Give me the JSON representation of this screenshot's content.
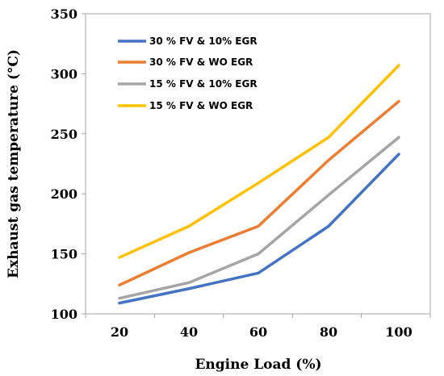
{
  "chart_data": {
    "type": "line",
    "xlabel": "Engine Load (%)",
    "ylabel": "Exhaust gas temperature (°C)",
    "x": [
      20,
      40,
      60,
      80,
      100
    ],
    "x_tick_labels": [
      "20",
      "40",
      "60",
      "80",
      "100"
    ],
    "ylim": [
      100,
      350
    ],
    "y_ticks": [
      100,
      150,
      200,
      250,
      300,
      350
    ],
    "y_tick_labels": [
      "100",
      "150",
      "200",
      "250",
      "300",
      "350"
    ],
    "grid": false,
    "legend_position": "top-left",
    "series": [
      {
        "name": "30 % FV & 10% EGR",
        "color": "#4472C4",
        "values": [
          109,
          121,
          134,
          173,
          233
        ]
      },
      {
        "name": "30 % FV & WO EGR",
        "color": "#ED7D31",
        "values": [
          124,
          151,
          173,
          228,
          277
        ]
      },
      {
        "name": "15 % FV & 10% EGR",
        "color": "#A5A5A5",
        "values": [
          113,
          126,
          150,
          199,
          247
        ]
      },
      {
        "name": "15 % FV & WO EGR",
        "color": "#FFC000",
        "values": [
          147,
          173,
          209,
          247,
          307
        ]
      }
    ]
  }
}
